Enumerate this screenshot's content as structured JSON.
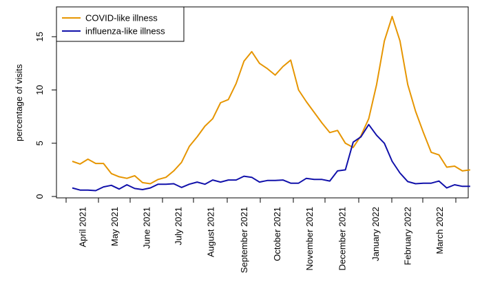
{
  "chart_data": {
    "type": "line",
    "title": "",
    "xlabel": "",
    "ylabel": "percentage of visits",
    "ylim": [
      0,
      17.5
    ],
    "yticks": [
      0,
      5,
      10,
      15
    ],
    "grid": false,
    "legend_position": "top-left",
    "x_tick_labels": [
      "April 2021",
      "May 2021",
      "June 2021",
      "July 2021",
      "August 2021",
      "September 2021",
      "October 2021",
      "November 2021",
      "December 2021",
      "January 2022",
      "February 2022",
      "March 2022"
    ],
    "series": [
      {
        "name": "COVID-like illness",
        "color": "#E69500",
        "values": [
          3.3,
          3.05,
          3.5,
          3.1,
          3.1,
          2.15,
          1.85,
          1.7,
          1.95,
          1.3,
          1.2,
          1.6,
          1.8,
          2.4,
          3.2,
          4.7,
          5.6,
          6.6,
          7.3,
          8.8,
          9.1,
          10.6,
          12.7,
          13.6,
          12.5,
          12.0,
          11.4,
          12.2,
          12.8,
          10.0,
          8.9,
          7.9,
          6.9,
          6.0,
          6.2,
          5.0,
          4.6,
          5.7,
          7.3,
          10.5,
          14.6,
          16.9,
          14.6,
          10.5,
          8.0,
          6.0,
          4.15,
          3.9,
          2.75,
          2.85,
          2.4,
          2.5
        ]
      },
      {
        "name": "influenza-like illness",
        "color": "#1010AA",
        "values": [
          0.8,
          0.6,
          0.6,
          0.55,
          0.9,
          1.05,
          0.7,
          1.1,
          0.75,
          0.65,
          0.8,
          1.15,
          1.15,
          1.2,
          0.85,
          1.15,
          1.35,
          1.15,
          1.55,
          1.35,
          1.55,
          1.55,
          1.9,
          1.8,
          1.35,
          1.5,
          1.5,
          1.55,
          1.25,
          1.25,
          1.7,
          1.6,
          1.6,
          1.45,
          2.4,
          2.5,
          5.1,
          5.6,
          6.75,
          5.75,
          5.0,
          3.3,
          2.2,
          1.4,
          1.2,
          1.25,
          1.25,
          1.45,
          0.8,
          1.1,
          0.95,
          0.95
        ]
      }
    ]
  }
}
